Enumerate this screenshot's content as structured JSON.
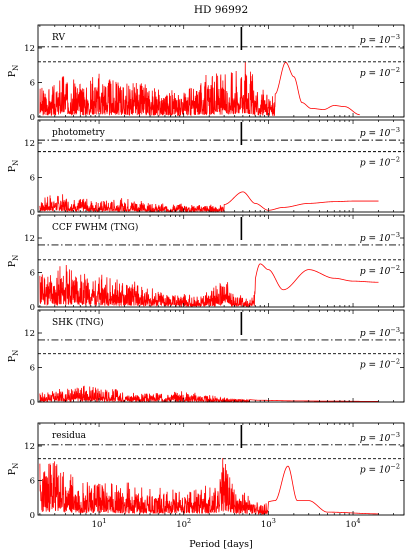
{
  "title": "HD 96992",
  "xlabel": "Period [days]",
  "ylabel": "P",
  "ylabel_sub": "N",
  "colors": {
    "signal": "#ff0000",
    "axes": "#000000"
  },
  "chart_data": [
    {
      "type": "line",
      "name": "RV",
      "label": "RV",
      "xscale": "log",
      "xlim": [
        1.9,
        40000
      ],
      "ylim": [
        0,
        16
      ],
      "yticks": [
        0,
        6,
        12
      ],
      "ytick_labels": [
        "0",
        "6",
        "12"
      ],
      "fap_lines": [
        {
          "value": 12.2,
          "style": "dashdot",
          "label": "p = 10",
          "exp": "−3"
        },
        {
          "value": 9.6,
          "style": "dashed",
          "label": "p = 10",
          "exp": "−2"
        }
      ],
      "marker_period": 480,
      "envelope": [
        [
          2,
          5.5
        ],
        [
          3,
          6
        ],
        [
          4,
          9.5
        ],
        [
          6,
          7
        ],
        [
          10,
          8.5
        ],
        [
          15,
          7
        ],
        [
          25,
          6.5
        ],
        [
          50,
          5.5
        ],
        [
          100,
          5.5
        ],
        [
          200,
          7.5
        ],
        [
          320,
          8
        ],
        [
          500,
          11.8
        ],
        [
          800,
          5
        ],
        [
          1200,
          4
        ],
        [
          1600,
          9.5
        ],
        [
          2000,
          7
        ],
        [
          2500,
          2.5
        ],
        [
          3200,
          1.5
        ],
        [
          4500,
          1.3
        ],
        [
          6000,
          2
        ],
        [
          8000,
          1.8
        ],
        [
          12000,
          0.4
        ]
      ],
      "smooth_from": 1200,
      "seed": 3
    },
    {
      "type": "line",
      "name": "photometry",
      "label": "photometry",
      "xscale": "log",
      "xlim": [
        1.9,
        40000
      ],
      "ylim": [
        0,
        16
      ],
      "yticks": [
        0,
        6,
        12
      ],
      "ytick_labels": [
        "0",
        "6",
        "12"
      ],
      "fap_lines": [
        {
          "value": 12.5,
          "style": "dashdot",
          "label": "p = 10",
          "exp": "−3"
        },
        {
          "value": 10.5,
          "style": "dashed",
          "label": "p = 10",
          "exp": "−2"
        }
      ],
      "marker_period": 480,
      "envelope": [
        [
          2,
          2.5
        ],
        [
          3,
          3.5
        ],
        [
          6,
          2.5
        ],
        [
          10,
          2
        ],
        [
          20,
          2.5
        ],
        [
          50,
          1.5
        ],
        [
          100,
          1.5
        ],
        [
          300,
          1.3
        ],
        [
          500,
          3.5
        ],
        [
          700,
          1.5
        ],
        [
          1000,
          0.3
        ],
        [
          1500,
          0.8
        ],
        [
          3000,
          1.5
        ],
        [
          6000,
          1.8
        ],
        [
          10000,
          1.9
        ],
        [
          20000,
          1.9
        ]
      ],
      "smooth_from": 300,
      "seed": 7
    },
    {
      "type": "line",
      "name": "CCF FWHM (TNG)",
      "label": "CCF FWHM (TNG)",
      "xscale": "log",
      "xlim": [
        1.9,
        40000
      ],
      "ylim": [
        0,
        16
      ],
      "yticks": [
        0,
        6,
        12
      ],
      "ytick_labels": [
        "0",
        "6",
        "12"
      ],
      "fap_lines": [
        {
          "value": 10.8,
          "style": "dashdot",
          "label": "p = 10",
          "exp": "−3"
        },
        {
          "value": 8.2,
          "style": "dashed",
          "label": "p = 10",
          "exp": "−2"
        }
      ],
      "marker_period": 480,
      "envelope": [
        [
          2,
          7.5
        ],
        [
          3,
          6.5
        ],
        [
          4,
          8
        ],
        [
          6,
          7
        ],
        [
          10,
          6
        ],
        [
          20,
          5
        ],
        [
          40,
          3.5
        ],
        [
          80,
          2.5
        ],
        [
          150,
          2
        ],
        [
          250,
          4
        ],
        [
          300,
          5.5
        ],
        [
          400,
          2.5
        ],
        [
          600,
          1.5
        ],
        [
          800,
          7.5
        ],
        [
          1000,
          6.5
        ],
        [
          1500,
          3
        ],
        [
          3000,
          6.5
        ],
        [
          6000,
          5
        ],
        [
          10000,
          4.5
        ],
        [
          20000,
          4.3
        ]
      ],
      "smooth_from": 700,
      "seed": 11
    },
    {
      "type": "line",
      "name": "SHK (TNG)",
      "label": "SHK (TNG)",
      "xscale": "log",
      "xlim": [
        1.9,
        40000
      ],
      "ylim": [
        0,
        16
      ],
      "yticks": [
        0,
        6,
        12
      ],
      "ytick_labels": [
        "0",
        "6",
        "12"
      ],
      "fap_lines": [
        {
          "value": 10.8,
          "style": "dashdot",
          "label": "p = 10",
          "exp": "−3"
        },
        {
          "value": 8.4,
          "style": "dashed",
          "label": "p = 10",
          "exp": "−2"
        }
      ],
      "marker_period": 480,
      "envelope": [
        [
          2,
          1.8
        ],
        [
          4,
          2.5
        ],
        [
          8,
          3
        ],
        [
          15,
          2.5
        ],
        [
          30,
          1.5
        ],
        [
          60,
          2
        ],
        [
          100,
          2
        ],
        [
          200,
          1.2
        ],
        [
          400,
          0.6
        ],
        [
          800,
          0.3
        ],
        [
          2000,
          0.2
        ],
        [
          5000,
          0.15
        ],
        [
          20000,
          0.1
        ]
      ],
      "smooth_from": 600,
      "seed": 17
    },
    {
      "type": "line",
      "name": "residua",
      "label": "residua",
      "xscale": "log",
      "xlim": [
        1.9,
        40000
      ],
      "ylim": [
        0,
        16
      ],
      "yticks": [
        0,
        6,
        12
      ],
      "ytick_labels": [
        "0",
        "6",
        "12"
      ],
      "fap_lines": [
        {
          "value": 12.2,
          "style": "dashdot",
          "label": "p = 10",
          "exp": "−3"
        },
        {
          "value": 9.8,
          "style": "dashed",
          "label": "p = 10",
          "exp": "−2"
        }
      ],
      "marker_period": 480,
      "envelope": [
        [
          2,
          10
        ],
        [
          3,
          11
        ],
        [
          4,
          8
        ],
        [
          6,
          7
        ],
        [
          10,
          6.5
        ],
        [
          20,
          6
        ],
        [
          40,
          5
        ],
        [
          80,
          5
        ],
        [
          150,
          5
        ],
        [
          250,
          6
        ],
        [
          300,
          12.5
        ],
        [
          380,
          6
        ],
        [
          500,
          4.5
        ],
        [
          800,
          2
        ],
        [
          1200,
          2.5
        ],
        [
          1700,
          8.5
        ],
        [
          2200,
          2.5
        ],
        [
          3000,
          2.5
        ],
        [
          5000,
          0.5
        ],
        [
          20000,
          0.2
        ]
      ],
      "smooth_from": 1000,
      "seed": 23
    }
  ],
  "xticks": [
    {
      "base": "10",
      "exp": "1",
      "value": 10
    },
    {
      "base": "10",
      "exp": "2",
      "value": 100
    },
    {
      "base": "10",
      "exp": "3",
      "value": 1000
    },
    {
      "base": "10",
      "exp": "4",
      "value": 10000
    }
  ]
}
